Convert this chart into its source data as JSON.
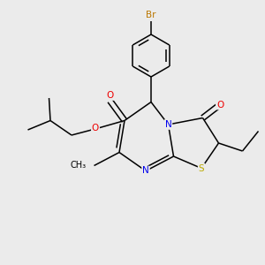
{
  "background_color": "#ebebeb",
  "fig_size": [
    3.0,
    3.0
  ],
  "dpi": 100,
  "atom_colors": {
    "C": "#000000",
    "N": "#0000ee",
    "O": "#ee0000",
    "S": "#bbaa00",
    "Br": "#bb7700"
  }
}
